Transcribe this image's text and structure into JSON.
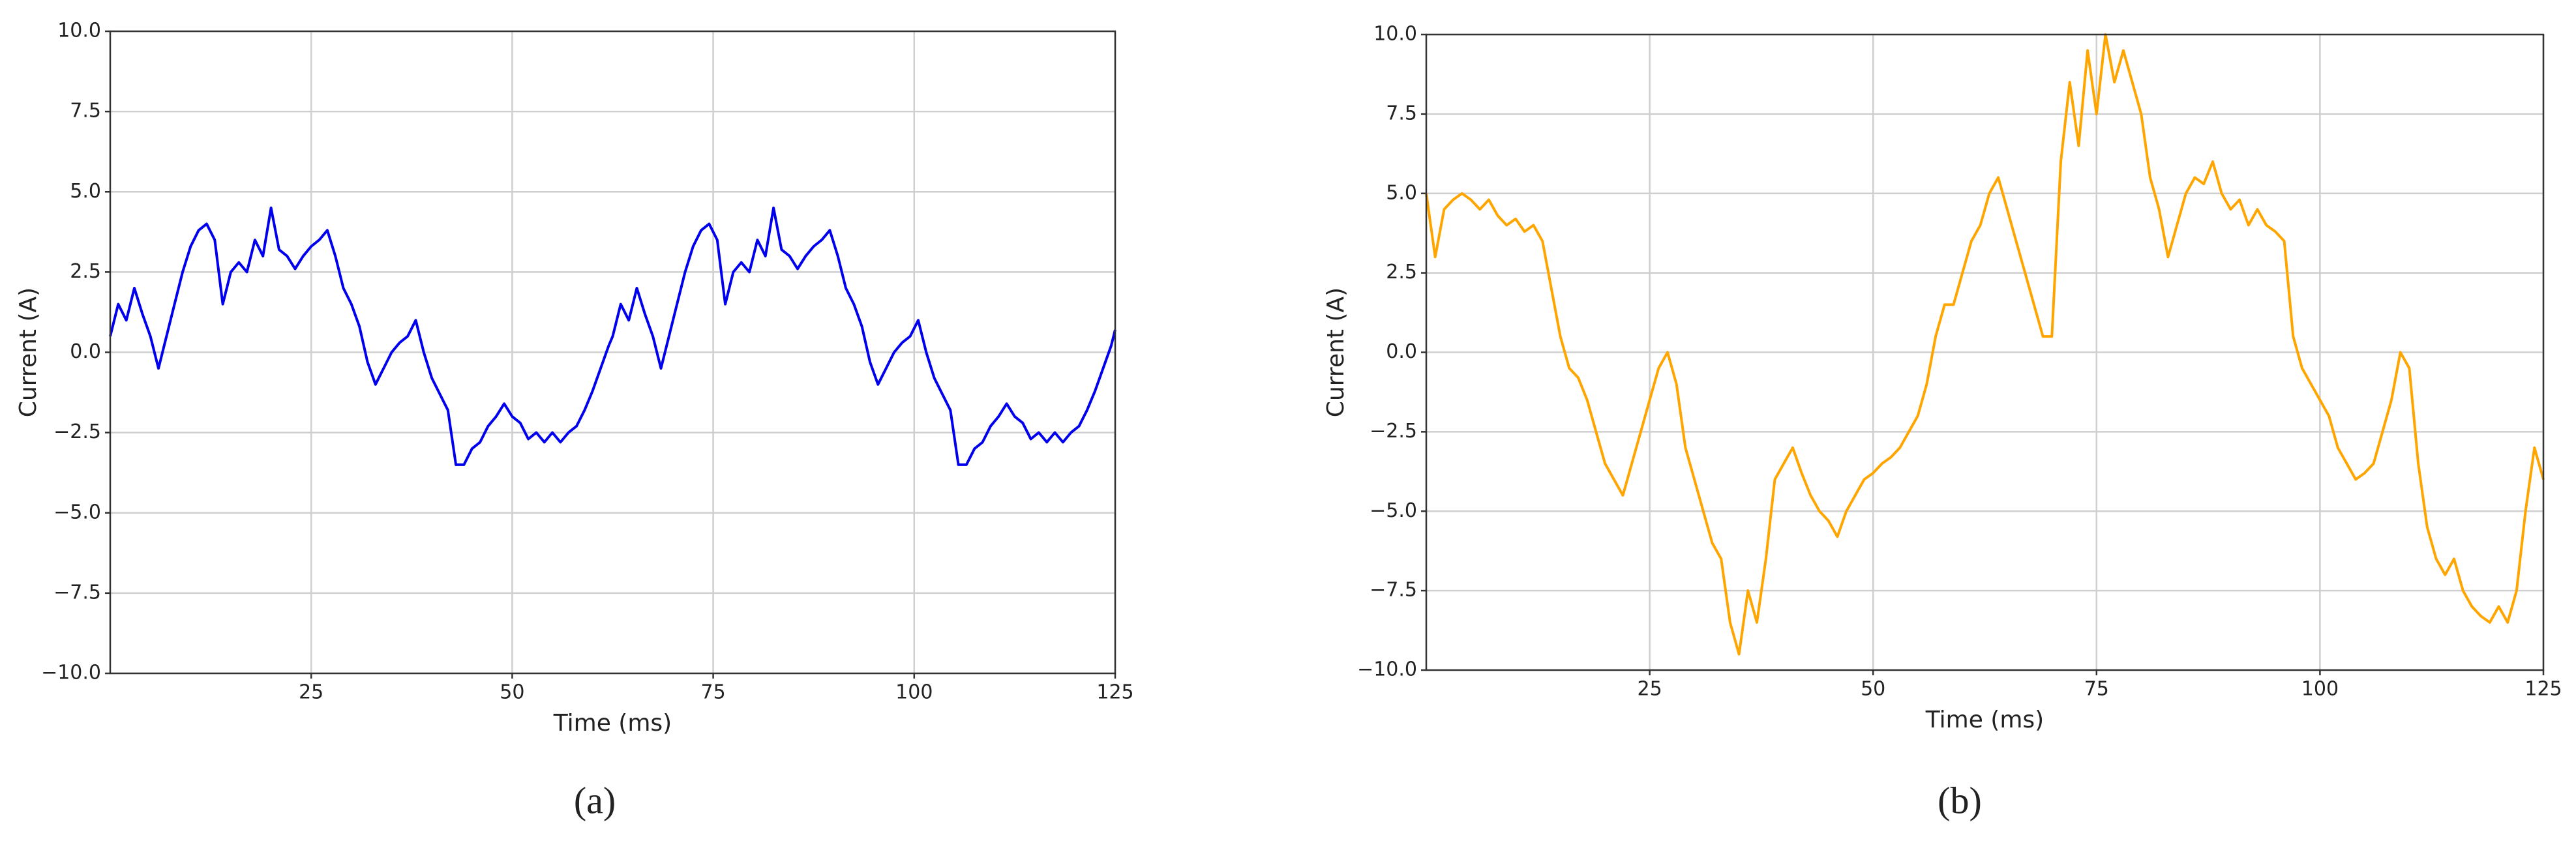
{
  "chart_data": [
    {
      "type": "line",
      "caption": "(a)",
      "xlabel": "Time (ms)",
      "ylabel": "Current (A)",
      "xlim": [
        0,
        125
      ],
      "xticks": [
        25,
        50,
        75,
        100,
        125
      ],
      "ylim": [
        -10,
        10
      ],
      "yticks": [
        {
          "value": -10,
          "label": "−10.0"
        },
        {
          "value": -7.5,
          "label": "−7.5"
        },
        {
          "value": -5,
          "label": "−5.0"
        },
        {
          "value": -2.5,
          "label": "−2.5"
        },
        {
          "value": 0,
          "label": "0.0"
        },
        2.5,
        {
          "value": 5,
          "label": "5.0"
        },
        7.5,
        {
          "value": 10,
          "label": "10.0"
        }
      ],
      "grid": true,
      "x": [
        0,
        1,
        2,
        3,
        4,
        5,
        6,
        7,
        8,
        9,
        10,
        11,
        12,
        13,
        14,
        15,
        16,
        17,
        18,
        19,
        20,
        21,
        22,
        23,
        24,
        25,
        26,
        27,
        28,
        29,
        30,
        31,
        32,
        33,
        34,
        35,
        36,
        37,
        38,
        39,
        40,
        41,
        42,
        43,
        44,
        45,
        46,
        47,
        48,
        49,
        50,
        51,
        52,
        53,
        54,
        55,
        56,
        57,
        58,
        59,
        60,
        61,
        62,
        62.5,
        63.5,
        64.5,
        65.5,
        66.5,
        67.5,
        68.5,
        69.5,
        70.5,
        71.5,
        72.5,
        73.5,
        74.5,
        75.5,
        76.5,
        77.5,
        78.5,
        79.5,
        80.5,
        81.5,
        82.5,
        83.5,
        84.5,
        85.5,
        86.5,
        87.5,
        88.5,
        89.5,
        90.5,
        91.5,
        92.5,
        93.5,
        94.5,
        95.5,
        96.5,
        97.5,
        98.5,
        99.5,
        100.5,
        101.5,
        102.5,
        103.5,
        104.5,
        105.5,
        106.5,
        107.5,
        108.5,
        109.5,
        110.5,
        111.5,
        112.5,
        113.5,
        114.5,
        115.5,
        116.5,
        117.5,
        118.5,
        119.5,
        120.5,
        121.5,
        122.5,
        123.5,
        124.5,
        125
      ],
      "series": [
        {
          "color": "#0000ee",
          "values": [
            0.5,
            1.5,
            1.0,
            2.0,
            1.2,
            0.5,
            -0.5,
            0.5,
            1.5,
            2.5,
            3.3,
            3.8,
            4.0,
            3.5,
            1.5,
            2.5,
            2.8,
            2.5,
            3.5,
            3.0,
            4.5,
            3.2,
            3.0,
            2.6,
            3.0,
            3.3,
            3.5,
            3.8,
            3.0,
            2.0,
            1.5,
            0.8,
            -0.3,
            -1.0,
            -0.5,
            0.0,
            0.3,
            0.5,
            1.0,
            0.0,
            -0.8,
            -1.3,
            -1.8,
            -3.5,
            -3.5,
            -3.0,
            -2.8,
            -2.3,
            -2.0,
            -1.6,
            -2.0,
            -2.2,
            -2.7,
            -2.5,
            -2.8,
            -2.5,
            -2.8,
            -2.5,
            -2.3,
            -1.8,
            -1.2,
            -0.5,
            0.2,
            0.5,
            1.5,
            1.0,
            2.0,
            1.2,
            0.5,
            -0.5,
            0.5,
            1.5,
            2.5,
            3.3,
            3.8,
            4.0,
            3.5,
            1.5,
            2.5,
            2.8,
            2.5,
            3.5,
            3.0,
            4.5,
            3.2,
            3.0,
            2.6,
            3.0,
            3.3,
            3.5,
            3.8,
            3.0,
            2.0,
            1.5,
            0.8,
            -0.3,
            -1.0,
            -0.5,
            0.0,
            0.3,
            0.5,
            1.0,
            0.0,
            -0.8,
            -1.3,
            -1.8,
            -3.5,
            -3.5,
            -3.0,
            -2.8,
            -2.3,
            -2.0,
            -1.6,
            -2.0,
            -2.2,
            -2.7,
            -2.5,
            -2.8,
            -2.5,
            -2.8,
            -2.5,
            -2.3,
            -1.8,
            -1.2,
            -0.5,
            0.2,
            0.7
          ]
        }
      ]
    },
    {
      "type": "line",
      "caption": "(b)",
      "xlabel": "Time (ms)",
      "ylabel": "Current (A)",
      "xlim": [
        0,
        125
      ],
      "xticks": [
        25,
        50,
        75,
        100,
        125
      ],
      "ylim": [
        -10,
        10
      ],
      "yticks": [
        {
          "value": -10,
          "label": "−10.0"
        },
        {
          "value": -7.5,
          "label": "−7.5"
        },
        {
          "value": -5,
          "label": "−5.0"
        },
        {
          "value": -2.5,
          "label": "−2.5"
        },
        {
          "value": 0,
          "label": "0.0"
        },
        2.5,
        {
          "value": 5,
          "label": "5.0"
        },
        7.5,
        {
          "value": 10,
          "label": "10.0"
        }
      ],
      "grid": true,
      "x": [
        0,
        1,
        2,
        3,
        4,
        5,
        6,
        7,
        8,
        9,
        10,
        11,
        12,
        13,
        14,
        15,
        16,
        17,
        18,
        19,
        20,
        21,
        22,
        23,
        24,
        25,
        26,
        27,
        28,
        29,
        30,
        31,
        32,
        33,
        34,
        35,
        36,
        37,
        38,
        39,
        40,
        41,
        42,
        43,
        44,
        45,
        46,
        47,
        48,
        49,
        50,
        51,
        52,
        53,
        54,
        55,
        56,
        57,
        58,
        59,
        60,
        61,
        62,
        63,
        64,
        65,
        66,
        67,
        68,
        69,
        70,
        71,
        72,
        73,
        74,
        75,
        76,
        77,
        78,
        79,
        80,
        81,
        82,
        83,
        84,
        85,
        86,
        87,
        88,
        89,
        90,
        91,
        92,
        93,
        94,
        95,
        96,
        97,
        98,
        99,
        100,
        101,
        102,
        103,
        104,
        105,
        106,
        107,
        108,
        109,
        110,
        111,
        112,
        113,
        114,
        115,
        116,
        117,
        118,
        119,
        120,
        121,
        122,
        123,
        124,
        125
      ],
      "series": [
        {
          "color": "#ffa500",
          "values": [
            5.0,
            3.0,
            4.5,
            4.8,
            5.0,
            4.8,
            4.5,
            4.8,
            4.3,
            4.0,
            4.2,
            3.8,
            4.0,
            3.5,
            2.0,
            0.5,
            -0.5,
            -0.8,
            -1.5,
            -2.5,
            -3.5,
            -4.0,
            -4.5,
            -3.5,
            -2.5,
            -1.5,
            -0.5,
            0.0,
            -1.0,
            -3.0,
            -4.0,
            -5.0,
            -6.0,
            -6.5,
            -8.5,
            -9.5,
            -7.5,
            -8.5,
            -6.5,
            -4.0,
            -3.5,
            -3.0,
            -3.8,
            -4.5,
            -5.0,
            -5.3,
            -5.8,
            -5.0,
            -4.5,
            -4.0,
            -3.8,
            -3.5,
            -3.3,
            -3.0,
            -2.5,
            -2.0,
            -1.0,
            0.5,
            1.5,
            1.5,
            2.5,
            3.5,
            4.0,
            5.0,
            5.5,
            4.5,
            3.5,
            2.5,
            1.5,
            0.5,
            0.5,
            6.0,
            8.5,
            6.5,
            9.5,
            7.5,
            10.0,
            8.5,
            9.5,
            8.5,
            7.5,
            5.5,
            4.5,
            3.0,
            4.0,
            5.0,
            5.5,
            5.3,
            6.0,
            5.0,
            4.5,
            4.8,
            4.0,
            4.5,
            4.0,
            3.8,
            3.5,
            0.5,
            -0.5,
            -1.0,
            -1.5,
            -2.0,
            -3.0,
            -3.5,
            -4.0,
            -3.8,
            -3.5,
            -2.5,
            -1.5,
            0.0,
            -0.5,
            -3.5,
            -5.5,
            -6.5,
            -7.0,
            -6.5,
            -7.5,
            -8.0,
            -8.3,
            -8.5,
            -8.0,
            -8.5,
            -7.5,
            -5.0,
            -3.0,
            -4.0
          ]
        }
      ]
    }
  ]
}
